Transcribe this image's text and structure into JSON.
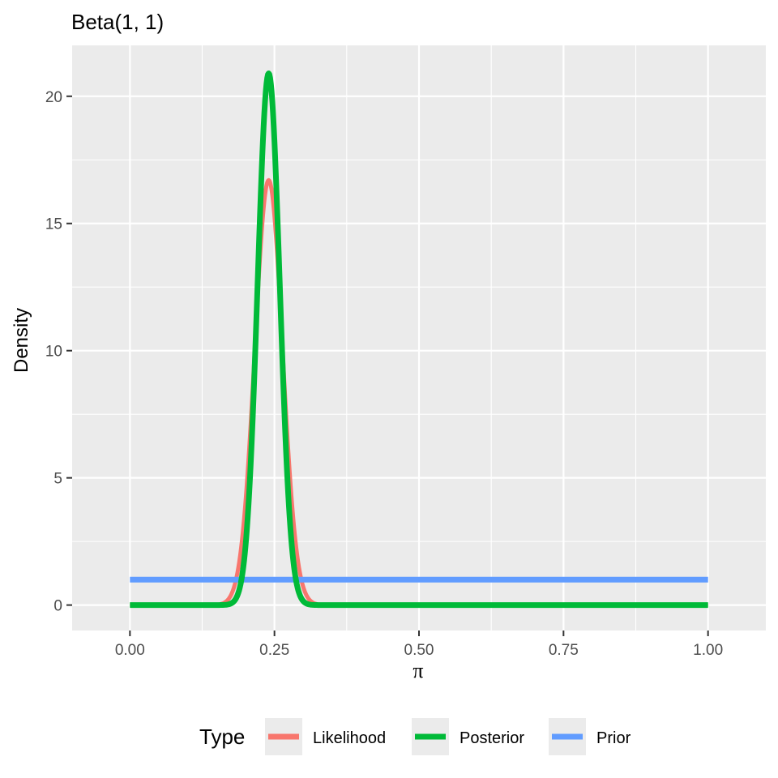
{
  "chart_data": {
    "type": "line",
    "title": "Beta(1, 1)",
    "xlabel": "π",
    "ylabel": "Density",
    "xlim": [
      -0.1,
      1.1
    ],
    "ylim": [
      -1.0,
      22.0
    ],
    "xlim_display": [
      -0.1,
      1.1
    ],
    "x_ticks": [
      0,
      0.25,
      0.5,
      0.75,
      1
    ],
    "x_tick_labels": [
      "0.00",
      "0.25",
      "0.50",
      "0.75",
      "1.00"
    ],
    "y_ticks": [
      0,
      5,
      10,
      15,
      20
    ],
    "y_tick_labels": [
      "0",
      "5",
      "10",
      "15",
      "20"
    ],
    "grid": true,
    "legend_position": "bottom",
    "legend_title": "Type",
    "series": [
      {
        "name": "Likelihood",
        "color": "#F8766D",
        "peak_x": 0.24,
        "peak_y": 16.7,
        "sd": 0.0238
      },
      {
        "name": "Posterior",
        "color": "#00BA38",
        "peak_x": 0.24,
        "peak_y": 20.9,
        "sd": 0.0191
      },
      {
        "name": "Prior",
        "color": "#619CFF",
        "constant_y": 1.0
      }
    ]
  }
}
